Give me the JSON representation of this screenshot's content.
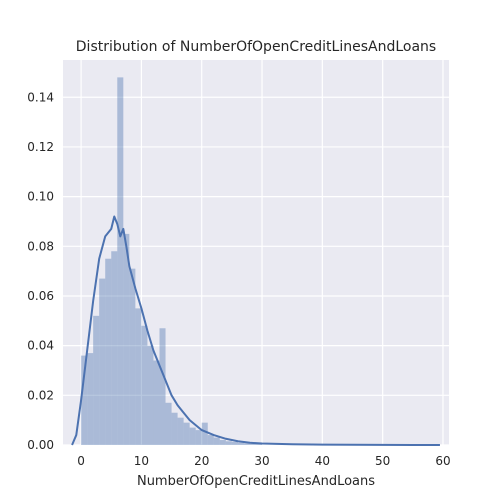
{
  "chart_data": {
    "type": "bar",
    "title": "Distribution of NumberOfOpenCreditLinesAndLoans",
    "xlabel": "NumberOfOpenCreditLinesAndLoans",
    "ylabel": "",
    "xlim": [
      -3,
      61
    ],
    "ylim": [
      0,
      0.155
    ],
    "xticks": [
      0,
      10,
      20,
      30,
      40,
      50,
      60
    ],
    "yticks": [
      0.0,
      0.02,
      0.04,
      0.06,
      0.08,
      0.1,
      0.12,
      0.14
    ],
    "ytick_labels": [
      "0.00",
      "0.02",
      "0.04",
      "0.06",
      "0.08",
      "0.10",
      "0.12",
      "0.14"
    ],
    "grid": true,
    "colors": {
      "background": "#eaeaf2",
      "grid": "#ffffff",
      "bars": "#4c72b0",
      "kde": "#4c72b0"
    },
    "histogram": {
      "bin_width": 1.0,
      "bins": [
        {
          "x0": 0,
          "value": 0.036
        },
        {
          "x0": 1,
          "value": 0.037
        },
        {
          "x0": 2,
          "value": 0.052
        },
        {
          "x0": 3,
          "value": 0.067
        },
        {
          "x0": 4,
          "value": 0.075
        },
        {
          "x0": 5,
          "value": 0.078
        },
        {
          "x0": 6,
          "value": 0.148
        },
        {
          "x0": 7,
          "value": 0.085
        },
        {
          "x0": 8,
          "value": 0.071
        },
        {
          "x0": 9,
          "value": 0.055
        },
        {
          "x0": 10,
          "value": 0.048
        },
        {
          "x0": 11,
          "value": 0.04
        },
        {
          "x0": 12,
          "value": 0.034
        },
        {
          "x0": 13,
          "value": 0.047
        },
        {
          "x0": 14,
          "value": 0.017
        },
        {
          "x0": 15,
          "value": 0.013
        },
        {
          "x0": 16,
          "value": 0.011
        },
        {
          "x0": 17,
          "value": 0.009
        },
        {
          "x0": 18,
          "value": 0.007
        },
        {
          "x0": 19,
          "value": 0.006
        },
        {
          "x0": 20,
          "value": 0.009
        },
        {
          "x0": 21,
          "value": 0.004
        },
        {
          "x0": 22,
          "value": 0.003
        },
        {
          "x0": 23,
          "value": 0.002
        },
        {
          "x0": 24,
          "value": 0.0015
        },
        {
          "x0": 25,
          "value": 0.0012
        },
        {
          "x0": 26,
          "value": 0.0009
        },
        {
          "x0": 27,
          "value": 0.0007
        },
        {
          "x0": 28,
          "value": 0.0005
        },
        {
          "x0": 29,
          "value": 0.0004
        }
      ]
    },
    "kde": {
      "x": [
        -1.5,
        -0.8,
        0,
        1,
        2,
        3,
        4,
        5,
        5.5,
        6,
        6.5,
        7,
        7.5,
        8,
        9,
        10,
        11,
        12,
        13,
        14,
        15,
        16,
        17,
        18,
        19,
        20,
        22,
        24,
        26,
        28,
        30,
        35,
        40,
        45,
        50,
        55,
        59.5
      ],
      "y": [
        0.0,
        0.004,
        0.018,
        0.038,
        0.058,
        0.075,
        0.084,
        0.087,
        0.092,
        0.089,
        0.084,
        0.087,
        0.08,
        0.072,
        0.063,
        0.055,
        0.046,
        0.038,
        0.032,
        0.026,
        0.02,
        0.016,
        0.013,
        0.01,
        0.008,
        0.006,
        0.004,
        0.0025,
        0.0015,
        0.0009,
        0.0006,
        0.0003,
        0.00015,
        0.0001,
        5e-05,
        2e-05,
        0.0
      ]
    }
  }
}
